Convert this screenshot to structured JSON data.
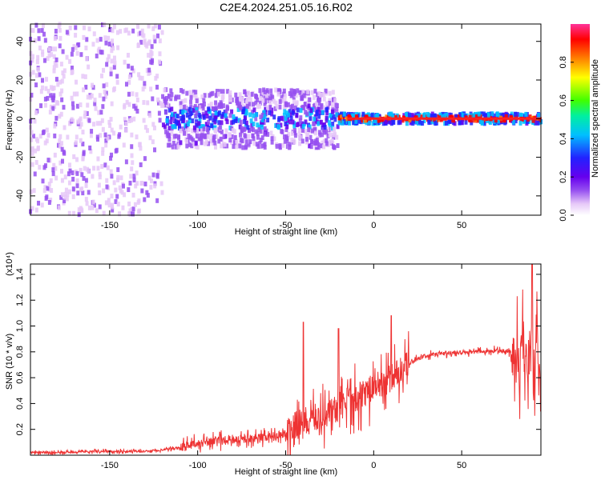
{
  "title": "C2E4.2024.251.05.16.R02",
  "chart_data": [
    {
      "type": "heatmap",
      "title": "C2E4.2024.251.05.16.R02",
      "xlabel": "Height of straight line (km)",
      "ylabel": "Frequency (Hz)",
      "xlim": [
        -195,
        95
      ],
      "ylim": [
        -50,
        49
      ],
      "xticks": [
        -150,
        -100,
        -50,
        0,
        50
      ],
      "yticks": [
        -40,
        -20,
        0,
        20,
        40
      ],
      "colorbar": {
        "label": "Normalized spectral amplitude",
        "range": [
          0,
          1
        ],
        "ticks": [
          0.0,
          0.2,
          0.4,
          0.6,
          0.8
        ],
        "tick_labels": [
          "0.0",
          "0.2",
          "0.4",
          "0.6",
          "0.8"
        ],
        "colormap": [
          "#ffffff",
          "#e6c8f8",
          "#9650f0",
          "#6600ee",
          "#2222ff",
          "#00c0ff",
          "#00f0a0",
          "#40ff00",
          "#ffff00",
          "#ff8000",
          "#ff0000",
          "#ff3399"
        ]
      },
      "description_regions": [
        {
          "x_range": [
            -195,
            -120
          ],
          "freq_range": [
            -50,
            49
          ],
          "amplitude": 0.08
        },
        {
          "x_range": [
            -120,
            -20
          ],
          "freq_range": [
            -15,
            15
          ],
          "amplitude": 0.25
        },
        {
          "x_range": [
            -20,
            95
          ],
          "freq_range": [
            -2,
            2
          ],
          "amplitude": 0.95
        }
      ]
    },
    {
      "type": "line",
      "xlabel": "Height of straight line (km)",
      "ylabel": "SNR (10 * v/v)",
      "y_multiplier": "(x10⁴)",
      "xlim": [
        -195,
        95
      ],
      "ylim": [
        0,
        1.48
      ],
      "xticks": [
        -150,
        -100,
        -50,
        0,
        50
      ],
      "yticks": [
        0.2,
        0.4,
        0.6,
        0.8,
        1.0,
        1.2,
        1.4
      ],
      "ytick_labels": [
        "0.2",
        "0.4",
        "0.6",
        "0.8",
        "1.0",
        "1.2",
        "1.4"
      ],
      "series": [
        {
          "name": "SNR",
          "color": "#ee3333",
          "x": [
            -195,
            -180,
            -160,
            -140,
            -130,
            -120,
            -110,
            -100,
            -90,
            -80,
            -70,
            -60,
            -50,
            -45,
            -40,
            -35,
            -30,
            -25,
            -20,
            -15,
            -10,
            -5,
            0,
            5,
            10,
            15,
            20,
            25,
            30,
            40,
            50,
            60,
            70,
            78,
            82,
            86,
            90,
            95
          ],
          "y": [
            0.02,
            0.02,
            0.03,
            0.03,
            0.03,
            0.04,
            0.06,
            0.09,
            0.11,
            0.12,
            0.13,
            0.14,
            0.17,
            0.22,
            0.26,
            0.28,
            0.3,
            0.33,
            0.38,
            0.42,
            0.45,
            0.48,
            0.52,
            0.55,
            0.6,
            0.65,
            0.7,
            0.75,
            0.77,
            0.79,
            0.8,
            0.8,
            0.81,
            0.8,
            0.75,
            0.82,
            0.8,
            0.78
          ]
        }
      ],
      "spikes": [
        {
          "x": -40,
          "y": 1.03
        },
        {
          "x": 10,
          "y": 1.08
        },
        {
          "x": -20,
          "y": 0.98
        },
        {
          "x": 90,
          "y": 1.48
        }
      ]
    }
  ]
}
